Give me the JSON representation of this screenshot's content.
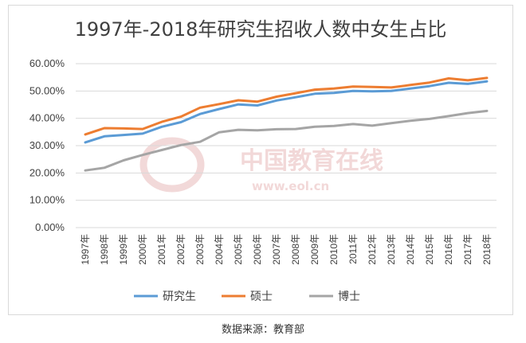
{
  "chart_data": {
    "type": "line",
    "title": "1997年-2018年研究生招收人数中女生占比",
    "categories": [
      "1997年",
      "1998年",
      "1999年",
      "2000年",
      "2001年",
      "2002年",
      "2003年",
      "2004年",
      "2005年",
      "2006年",
      "2007年",
      "2008年",
      "2009年",
      "2010年",
      "2011年",
      "2012年",
      "2013年",
      "2014年",
      "2015年",
      "2016年",
      "2017年",
      "2018年"
    ],
    "ylim": [
      0,
      60
    ],
    "yticks": [
      "0.00%",
      "10.00%",
      "20.00%",
      "30.00%",
      "40.00%",
      "50.00%",
      "60.00%"
    ],
    "grid": true,
    "legend_position": "bottom",
    "series": [
      {
        "name": "研究生",
        "color": "#5b9bd5",
        "values": [
          31.2,
          33.4,
          33.9,
          34.4,
          36.9,
          38.6,
          41.6,
          43.4,
          45.1,
          44.7,
          46.5,
          47.7,
          49.0,
          49.3,
          50.0,
          49.9,
          50.0,
          50.9,
          51.8,
          53.0,
          52.6,
          53.5
        ]
      },
      {
        "name": "硕士",
        "color": "#ed7d31",
        "values": [
          34.1,
          36.4,
          36.3,
          36.1,
          38.7,
          40.6,
          43.9,
          45.2,
          46.6,
          46.1,
          47.9,
          49.2,
          50.5,
          50.9,
          51.6,
          51.5,
          51.3,
          52.2,
          53.1,
          54.6,
          53.9,
          54.8
        ]
      },
      {
        "name": "博士",
        "color": "#a5a5a5",
        "values": [
          20.9,
          21.9,
          24.6,
          26.6,
          28.4,
          30.2,
          31.4,
          34.9,
          35.8,
          35.6,
          36.0,
          36.1,
          36.9,
          37.2,
          37.9,
          37.3,
          38.2,
          39.1,
          39.8,
          40.8,
          41.9,
          42.7
        ]
      }
    ]
  },
  "watermark": {
    "main": "中国教育在线",
    "sub": "www.eol.cn",
    "logo": "eol"
  },
  "source_text": "数据来源：教育部"
}
